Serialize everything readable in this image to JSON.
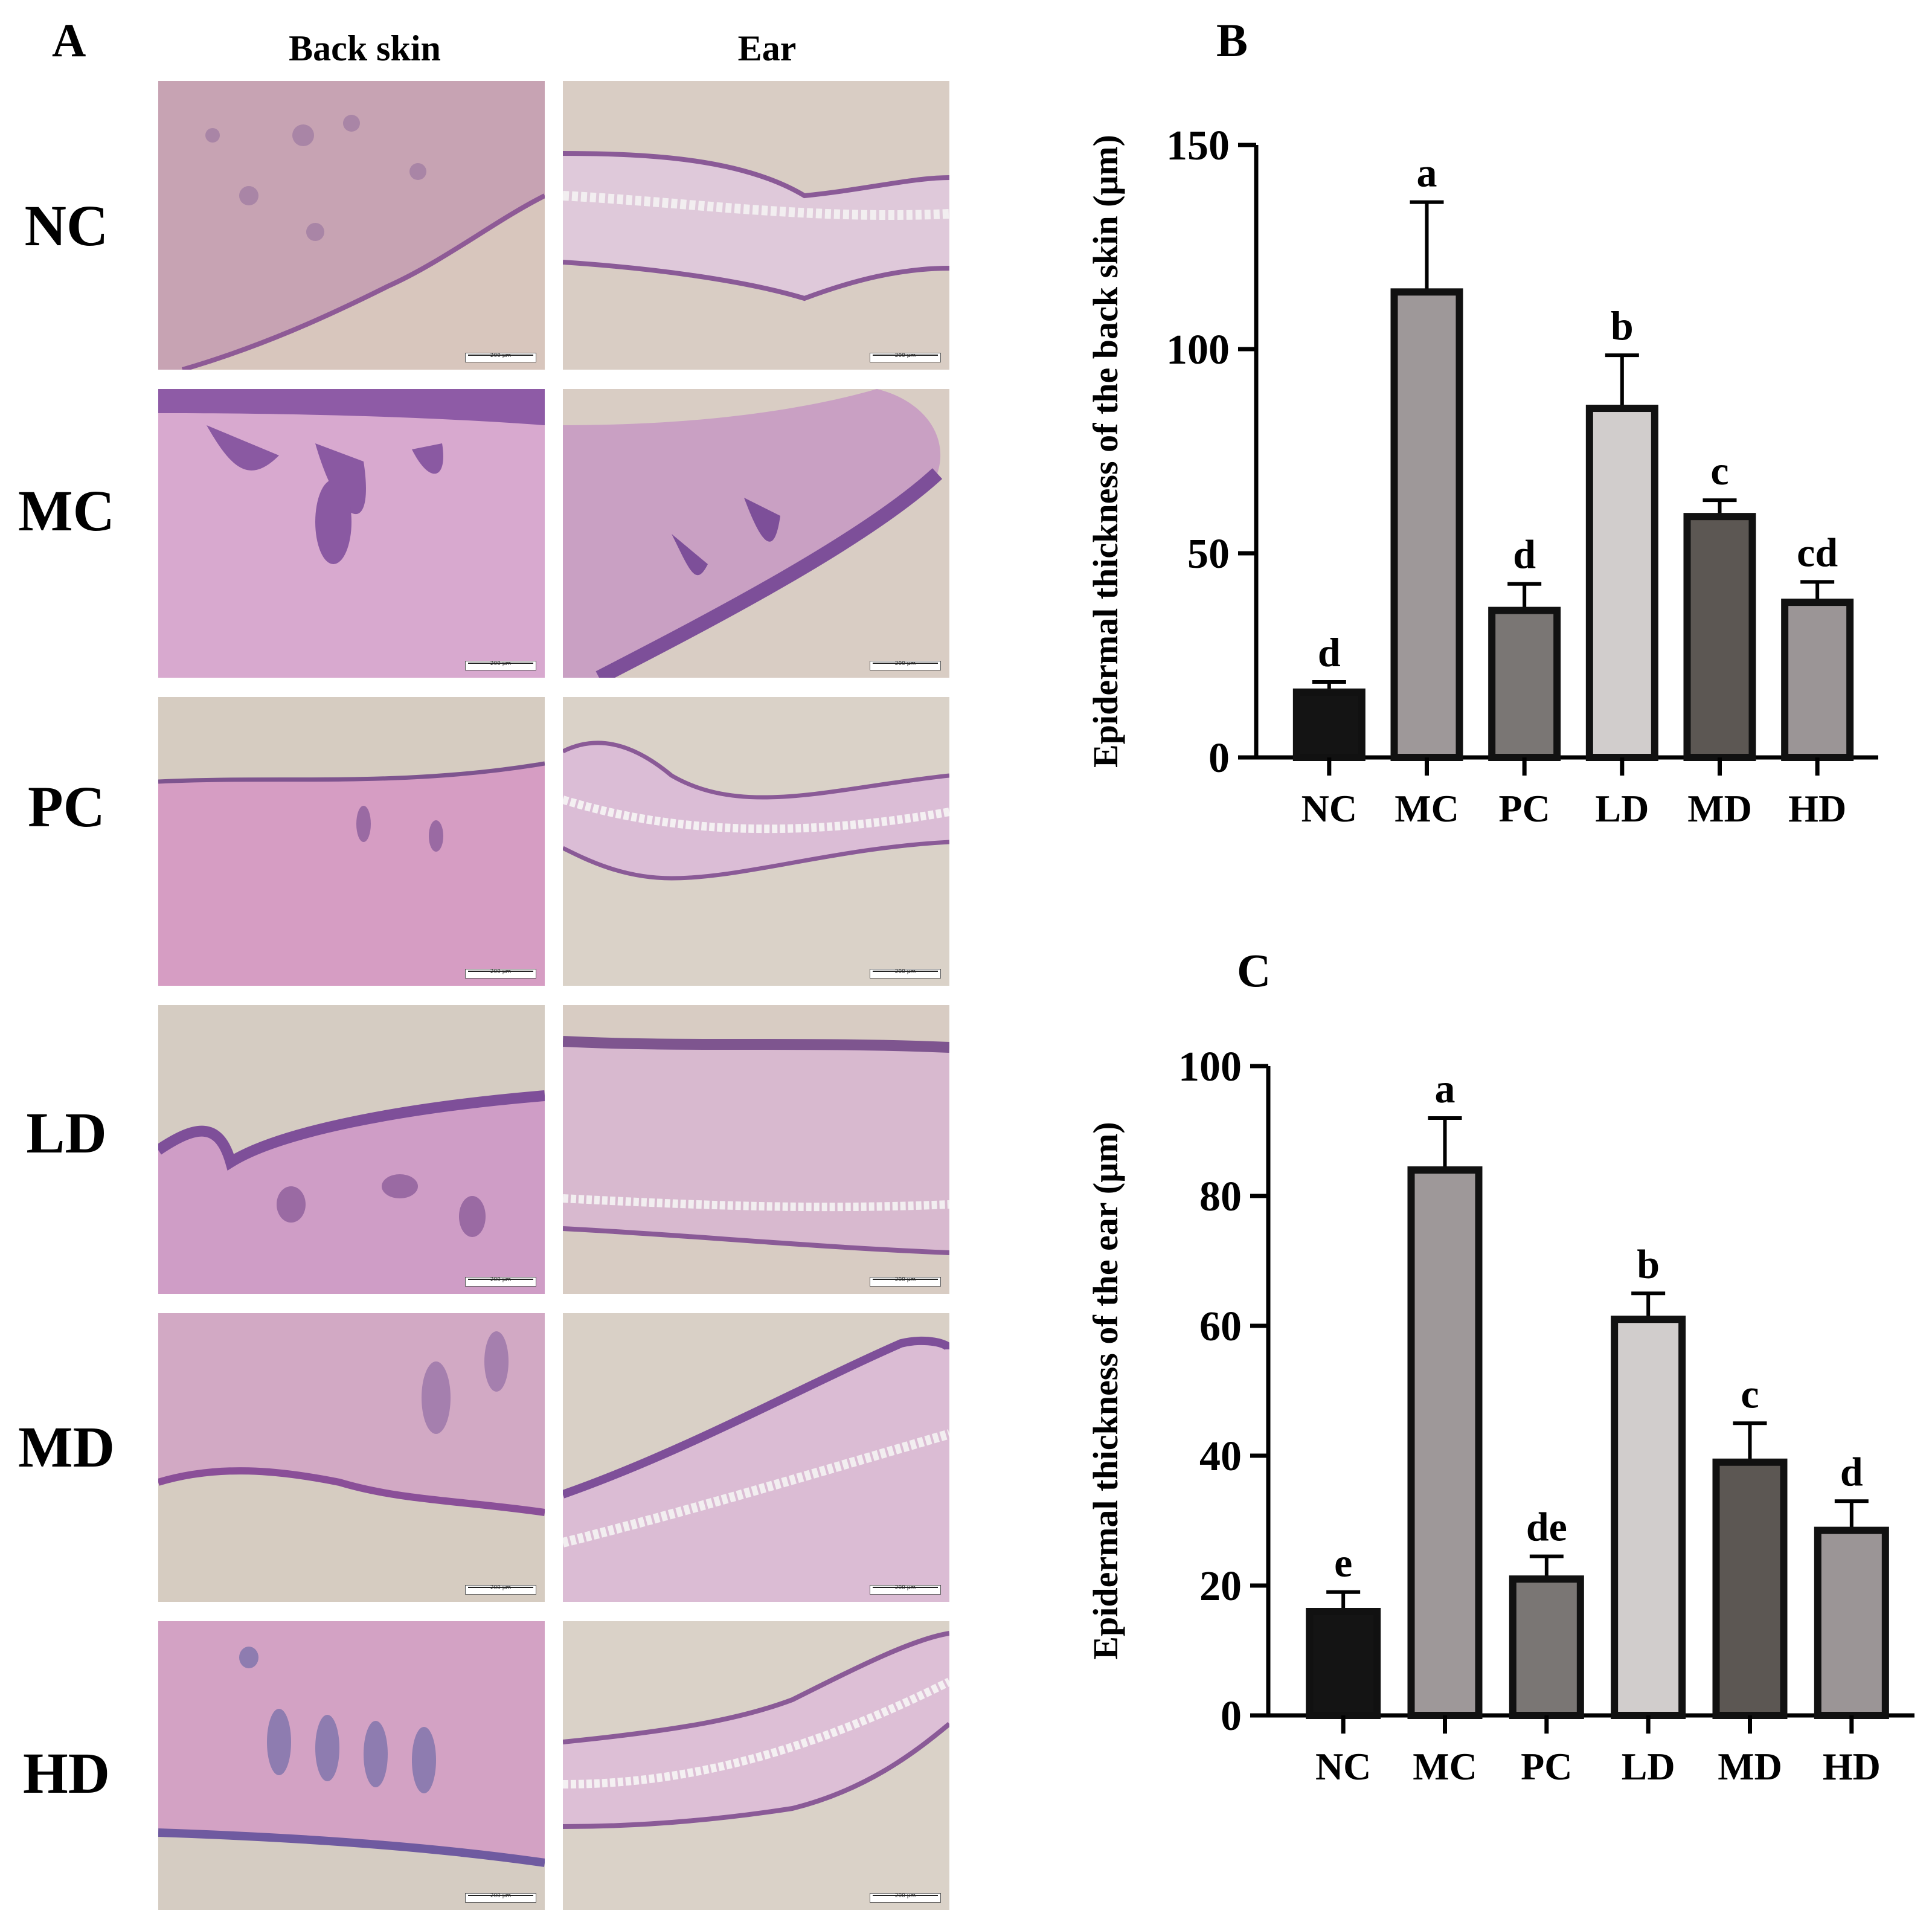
{
  "panels": {
    "a_label": "A",
    "b_label": "B",
    "c_label": "C"
  },
  "micrographs": {
    "columns": [
      "Back skin",
      "Ear"
    ],
    "rows": [
      "NC",
      "MC",
      "PC",
      "LD",
      "MD",
      "HD"
    ],
    "scale_bar_text": "200 μm"
  },
  "colors": {
    "NC": "#141414",
    "MC": "#9e9899",
    "PC": "#7a7674",
    "LD": "#d1cdcc",
    "MD": "#5c5753",
    "HD": "#9b9596"
  },
  "chart_data": [
    {
      "type": "bar",
      "panel": "B",
      "categories": [
        "NC",
        "MC",
        "PC",
        "LD",
        "MD",
        "HD"
      ],
      "values": [
        16,
        114,
        36,
        85.5,
        59,
        38
      ],
      "error": [
        2.5,
        22,
        6.5,
        13,
        4,
        5
      ],
      "significance": [
        "d",
        "a",
        "d",
        "b",
        "c",
        "cd"
      ],
      "xlabel": "",
      "ylabel": "Epidermal thickness of the back skin (μm)",
      "ylim": [
        0,
        150
      ],
      "yticks": [
        0,
        50,
        100,
        150
      ],
      "grid": false
    },
    {
      "type": "bar",
      "panel": "C",
      "categories": [
        "NC",
        "MC",
        "PC",
        "LD",
        "MD",
        "HD"
      ],
      "values": [
        16,
        84,
        21,
        61,
        39,
        28.5
      ],
      "error": [
        3,
        8,
        3.5,
        4,
        6,
        4.5
      ],
      "significance": [
        "e",
        "a",
        "de",
        "b",
        "c",
        "d"
      ],
      "xlabel": "",
      "ylabel": "Epidermal thickness of the ear (μm)",
      "ylim": [
        0,
        100
      ],
      "yticks": [
        0,
        20,
        40,
        60,
        80,
        100
      ],
      "grid": false
    }
  ]
}
